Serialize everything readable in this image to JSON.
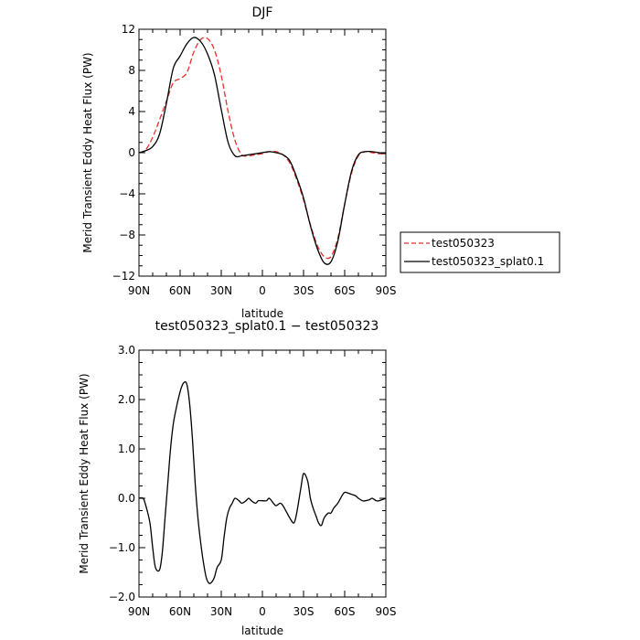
{
  "chart_data": [
    {
      "type": "line",
      "title": "DJF",
      "xlabel": "latitude",
      "ylabel": "Merid Transient Eddy Heat Flux (PW)",
      "xlim": [
        90,
        -90
      ],
      "ylim": [
        -12,
        12
      ],
      "xticks": [
        {
          "value": 90,
          "label": "90N"
        },
        {
          "value": 60,
          "label": "60N"
        },
        {
          "value": 30,
          "label": "30N"
        },
        {
          "value": 0,
          "label": "0"
        },
        {
          "value": -30,
          "label": "30S"
        },
        {
          "value": -60,
          "label": "60S"
        },
        {
          "value": -90,
          "label": "90S"
        }
      ],
      "yticks": [
        {
          "value": 12,
          "label": "12"
        },
        {
          "value": 8,
          "label": "8"
        },
        {
          "value": 4,
          "label": "4"
        },
        {
          "value": 0,
          "label": "0"
        },
        {
          "value": -4,
          "label": "−4"
        },
        {
          "value": -8,
          "label": "−8"
        },
        {
          "value": -12,
          "label": "−12"
        }
      ],
      "legend": {
        "placement": "right"
      },
      "series": [
        {
          "name": "test050323",
          "color": "#e8302c",
          "dash": true,
          "x": [
            90,
            85,
            80,
            75,
            70,
            65,
            60,
            55,
            50,
            45,
            40,
            35,
            30,
            25,
            20,
            15,
            10,
            5,
            0,
            -5,
            -10,
            -15,
            -20,
            -25,
            -30,
            -35,
            -40,
            -45,
            -50,
            -55,
            -60,
            -65,
            -70,
            -75,
            -80,
            -85,
            -90
          ],
          "y": [
            0.0,
            0.3,
            1.5,
            3.2,
            5.0,
            6.8,
            7.2,
            7.8,
            9.8,
            11.0,
            11.1,
            10.0,
            7.5,
            4.0,
            1.2,
            -0.2,
            -0.3,
            -0.2,
            -0.1,
            0.1,
            0.1,
            -0.2,
            -1.0,
            -2.6,
            -4.6,
            -7.0,
            -9.0,
            -10.1,
            -10.1,
            -8.3,
            -5.0,
            -2.0,
            -0.3,
            0.1,
            0.0,
            -0.1,
            -0.1
          ]
        },
        {
          "name": "test050323_splat0.1",
          "color": "#000000",
          "dash": false,
          "x": [
            90,
            85,
            80,
            75,
            70,
            65,
            60,
            55,
            50,
            45,
            40,
            35,
            30,
            25,
            20,
            15,
            10,
            5,
            0,
            -5,
            -10,
            -15,
            -20,
            -25,
            -30,
            -35,
            -40,
            -45,
            -50,
            -55,
            -60,
            -65,
            -70,
            -75,
            -80,
            -85,
            -90
          ],
          "y": [
            0.0,
            0.2,
            0.6,
            1.8,
            4.8,
            8.2,
            9.4,
            10.6,
            11.2,
            10.8,
            9.6,
            7.6,
            4.2,
            1.0,
            -0.3,
            -0.3,
            -0.2,
            -0.1,
            0.0,
            0.1,
            0.0,
            -0.2,
            -0.8,
            -2.4,
            -4.4,
            -7.1,
            -9.3,
            -10.7,
            -10.6,
            -8.6,
            -5.0,
            -1.8,
            -0.2,
            0.1,
            0.1,
            0.0,
            -0.1
          ]
        }
      ]
    },
    {
      "type": "line",
      "title": "test050323_splat0.1 − test050323",
      "xlabel": "latitude",
      "ylabel": "Merid Transient Eddy Heat Flux (PW)",
      "xlim": [
        90,
        -90
      ],
      "ylim": [
        -2.0,
        3.0
      ],
      "xticks": [
        {
          "value": 90,
          "label": "90N"
        },
        {
          "value": 60,
          "label": "60N"
        },
        {
          "value": 30,
          "label": "30N"
        },
        {
          "value": 0,
          "label": "0"
        },
        {
          "value": -30,
          "label": "30S"
        },
        {
          "value": -60,
          "label": "60S"
        },
        {
          "value": -90,
          "label": "90S"
        }
      ],
      "yticks": [
        {
          "value": 3.0,
          "label": "3.0"
        },
        {
          "value": 2.0,
          "label": "2.0"
        },
        {
          "value": 1.0,
          "label": "1.0"
        },
        {
          "value": 0.0,
          "label": "0.0"
        },
        {
          "value": -1.0,
          "label": "−1.0"
        },
        {
          "value": -2.0,
          "label": "−2.0"
        }
      ],
      "series": [
        {
          "color": "#000000",
          "dash": false,
          "x": [
            90,
            87,
            85,
            82,
            80,
            78,
            75,
            73,
            71,
            69,
            67,
            65,
            63,
            61,
            59,
            57,
            55,
            53,
            51,
            49,
            47,
            45,
            43,
            41,
            39,
            37,
            35,
            33,
            30,
            28,
            26,
            24,
            22,
            20,
            17,
            15,
            12,
            10,
            8,
            5,
            3,
            0,
            -3,
            -5,
            -8,
            -10,
            -13,
            -15,
            -18,
            -20,
            -23,
            -25,
            -28,
            -30,
            -33,
            -35,
            -37,
            -39,
            -41,
            -43,
            -45,
            -48,
            -50,
            -52,
            -55,
            -58,
            -60,
            -63,
            -65,
            -68,
            -70,
            -73,
            -75,
            -78,
            -80,
            -83,
            -85,
            -88,
            -90
          ],
          "y": [
            0.0,
            0.0,
            -0.15,
            -0.5,
            -1.0,
            -1.4,
            -1.45,
            -1.1,
            -0.4,
            0.3,
            1.0,
            1.5,
            1.8,
            2.05,
            2.25,
            2.35,
            2.3,
            1.9,
            1.2,
            0.3,
            -0.4,
            -0.9,
            -1.3,
            -1.6,
            -1.72,
            -1.7,
            -1.6,
            -1.4,
            -1.25,
            -0.8,
            -0.4,
            -0.2,
            -0.1,
            0.0,
            -0.05,
            -0.1,
            -0.05,
            0.0,
            -0.05,
            -0.1,
            -0.05,
            -0.05,
            -0.05,
            0.0,
            -0.1,
            -0.15,
            -0.1,
            -0.15,
            -0.3,
            -0.4,
            -0.5,
            -0.3,
            0.2,
            0.5,
            0.35,
            0.0,
            -0.2,
            -0.35,
            -0.5,
            -0.55,
            -0.4,
            -0.3,
            -0.3,
            -0.2,
            -0.1,
            0.05,
            0.12,
            0.1,
            0.08,
            0.05,
            0.0,
            -0.05,
            -0.05,
            -0.03,
            0.0,
            -0.05,
            -0.05,
            -0.02,
            0.0
          ]
        }
      ]
    }
  ]
}
